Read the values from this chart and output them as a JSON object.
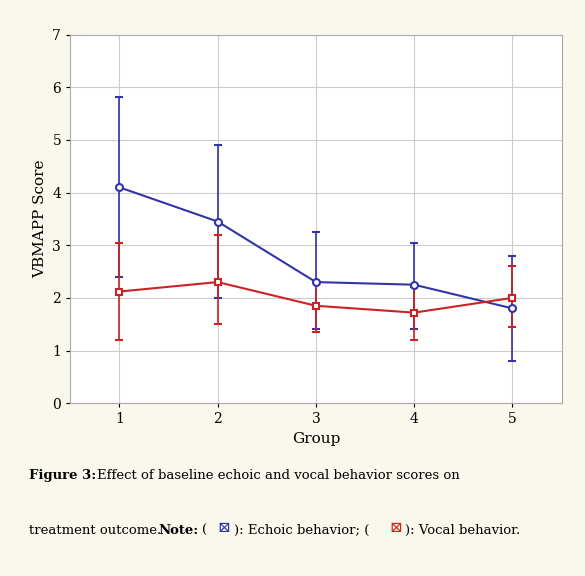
{
  "groups": [
    1,
    2,
    3,
    4,
    5
  ],
  "blue_y": [
    4.1,
    3.45,
    2.3,
    2.25,
    1.8
  ],
  "blue_yerr_upper": [
    1.72,
    1.45,
    0.95,
    0.8,
    1.0
  ],
  "blue_yerr_lower": [
    1.7,
    1.45,
    0.9,
    0.85,
    1.0
  ],
  "red_y": [
    2.12,
    2.3,
    1.85,
    1.72,
    2.0
  ],
  "red_yerr_upper": [
    0.93,
    0.9,
    0.45,
    0.48,
    0.6
  ],
  "red_yerr_lower": [
    0.92,
    0.8,
    0.5,
    0.52,
    0.55
  ],
  "blue_color": "#3333AA",
  "red_color": "#CC2222",
  "background_color": "#FAF7ED",
  "plot_bg_color": "#FFFFFF",
  "grid_color": "#CCCCCC",
  "ylabel": "VBMAPP Score",
  "xlabel": "Group",
  "ylim": [
    0,
    7
  ],
  "yticks": [
    0,
    1,
    2,
    3,
    4,
    5,
    6,
    7
  ],
  "xticks": [
    1,
    2,
    3,
    4,
    5
  ],
  "axis_fontsize": 11,
  "tick_fontsize": 10
}
